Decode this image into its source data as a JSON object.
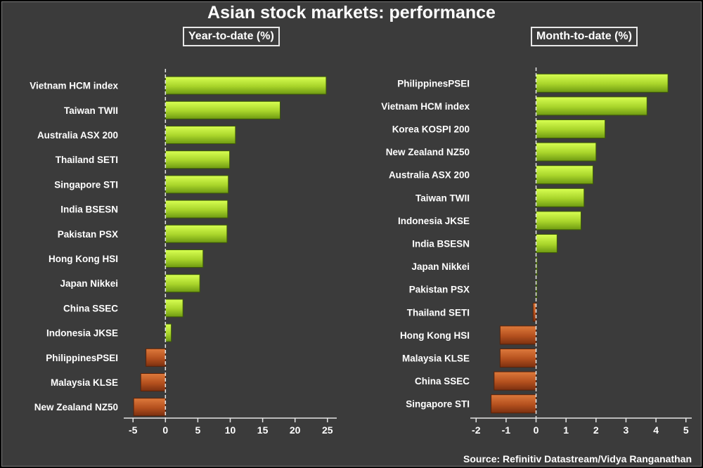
{
  "title": "Asian stock markets: performance",
  "source": "Source: Refinitiv Datastream/Vidya Ranganathan",
  "colors": {
    "positive": "#a8d42a",
    "negative": "#b4501e",
    "background": "#3b3b3b"
  },
  "chart_data": [
    {
      "type": "bar",
      "orientation": "horizontal",
      "title": "Year-to-date (%)",
      "categories": [
        "Vietnam HCM index",
        "Taiwan TWII",
        "Australia ASX 200",
        "Thailand SETI",
        "Singapore STI",
        "India BSESN",
        "Pakistan PSX",
        "Hong Kong HSI",
        "Japan Nikkei",
        "China SSEC",
        "Indonesia JKSE",
        "PhilippinesPSEI",
        "Malaysia KLSE",
        "New Zealand NZ50"
      ],
      "values": [
        24.8,
        17.7,
        10.8,
        9.9,
        9.7,
        9.6,
        9.5,
        5.8,
        5.3,
        2.7,
        0.9,
        -3.0,
        -3.8,
        -4.9
      ],
      "xlim": [
        -6,
        26
      ],
      "xticks": [
        -5,
        0,
        5,
        10,
        15,
        20,
        25
      ],
      "xtick_labels": [
        "-5",
        "0",
        "5",
        "10",
        "15",
        "20",
        "25"
      ],
      "grid": false,
      "legend": false
    },
    {
      "type": "bar",
      "orientation": "horizontal",
      "title": "Month-to-date (%)",
      "categories": [
        "PhilippinesPSEI",
        "Vietnam HCM index",
        "Korea KOSPI 200",
        "New Zealand NZ50",
        "Australia ASX 200",
        "Taiwan TWII",
        "Indonesia JKSE",
        "India BSESN",
        "Japan Nikkei",
        "Pakistan PSX",
        "Thailand SETI",
        "Hong Kong HSI",
        "Malaysia KLSE",
        "China SSEC",
        "Singapore STI"
      ],
      "values": [
        4.4,
        3.7,
        2.3,
        2.0,
        1.9,
        1.6,
        1.5,
        0.7,
        0.03,
        0.0,
        -0.1,
        -1.2,
        -1.2,
        -1.4,
        -1.5
      ],
      "xlim": [
        -2.1,
        5.1
      ],
      "xticks": [
        -2,
        -1,
        0,
        1,
        2,
        3,
        4,
        5
      ],
      "xtick_labels": [
        "-2",
        "-1",
        "0",
        "1",
        "2",
        "3",
        "4",
        "5"
      ],
      "grid": false,
      "legend": false
    }
  ]
}
